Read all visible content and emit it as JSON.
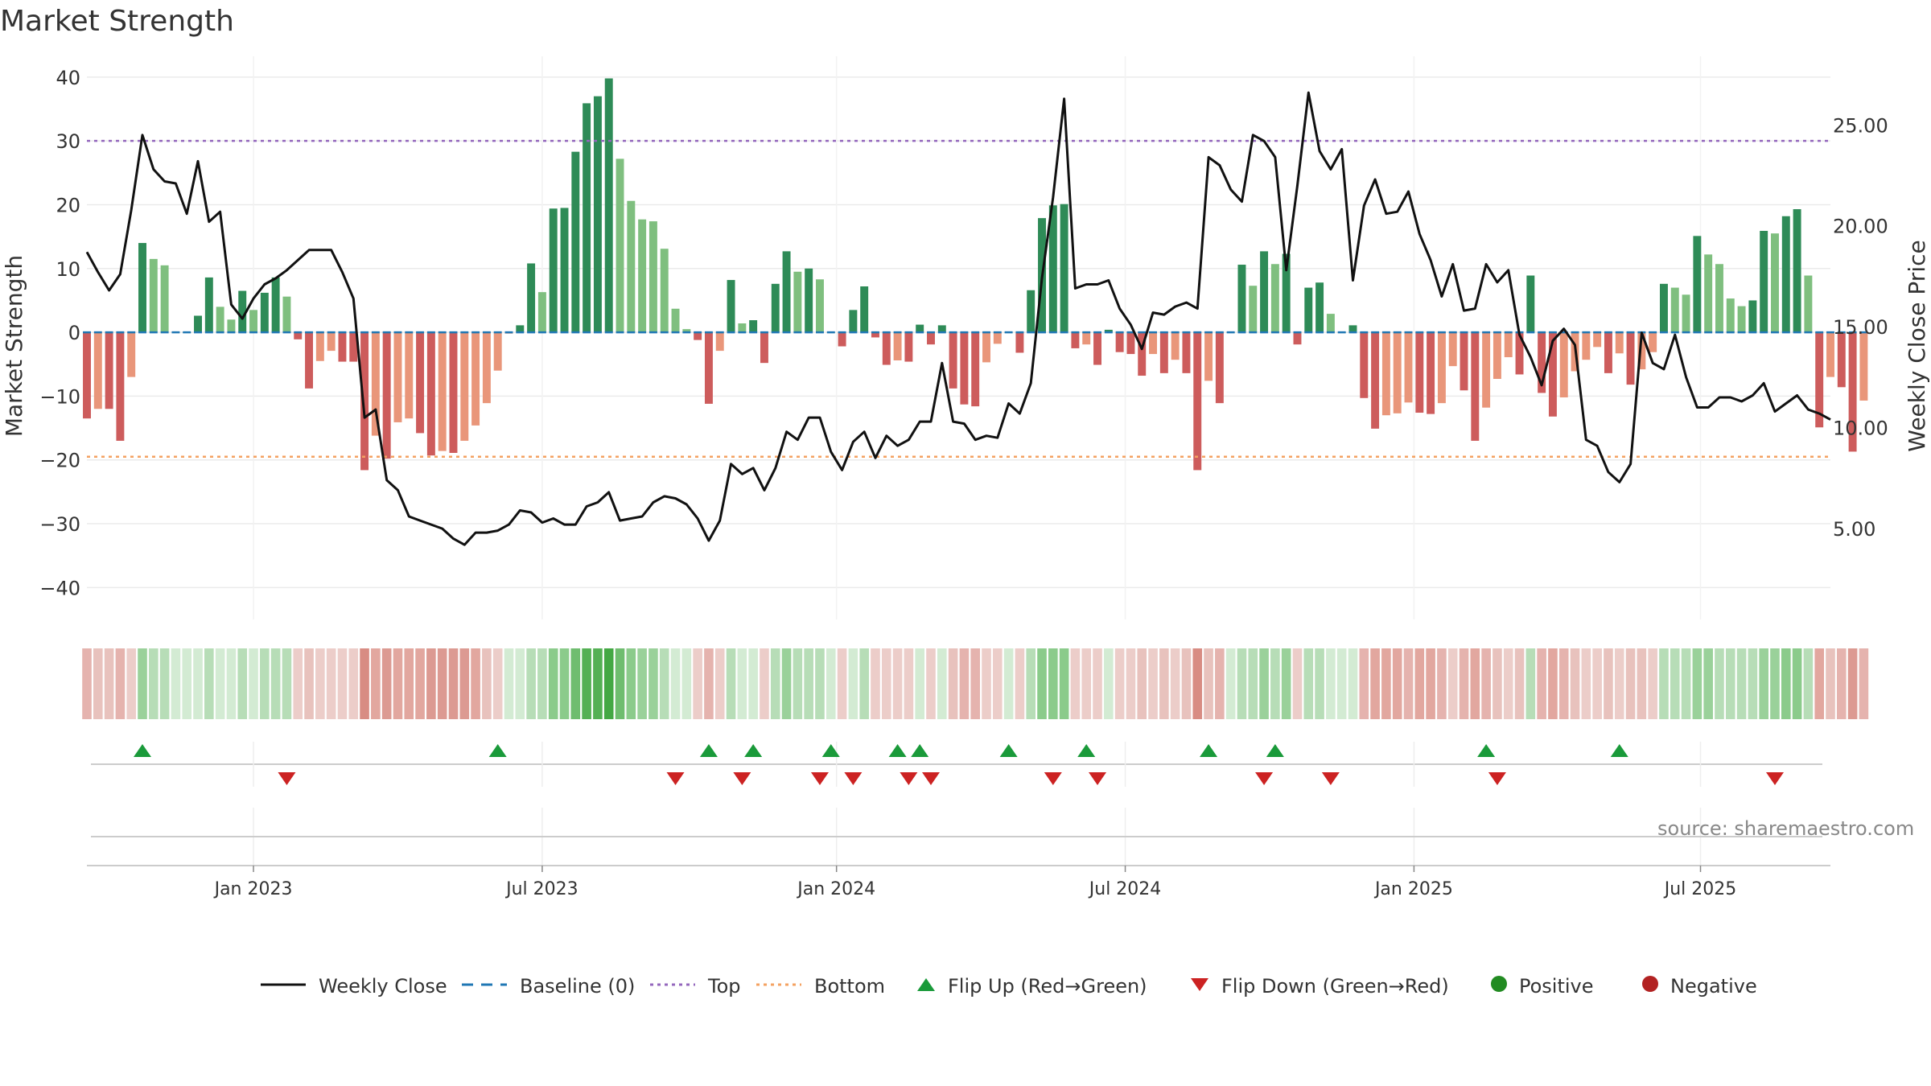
{
  "chart_data": {
    "type": "bar",
    "title": "Market Strength",
    "ylabel": "Market Strength",
    "y2label": "Weekly Close Price",
    "ylim": [
      -45,
      42
    ],
    "y2lim": [
      0.5,
      28.0
    ],
    "yticks": [
      40,
      30,
      20,
      10,
      0,
      -10,
      -20,
      -30,
      -40
    ],
    "yticklabels": [
      "40",
      "30",
      "20",
      "10",
      "0",
      "−10",
      "−20",
      "−30",
      "−40"
    ],
    "y2ticks": [
      25.0,
      20.0,
      15.0,
      10.0,
      5.0
    ],
    "y2ticklabels": [
      "25.00",
      "20.00",
      "15.00",
      "10.00",
      "5.00"
    ],
    "x_range_weeks": [
      0,
      157
    ],
    "xticks": [
      {
        "week": 15,
        "label": "Jan 2023"
      },
      {
        "week": 41,
        "label": "Jul 2023"
      },
      {
        "week": 67.5,
        "label": "Jan 2024"
      },
      {
        "week": 93.5,
        "label": "Jul 2024"
      },
      {
        "week": 119.5,
        "label": "Jan 2025"
      },
      {
        "week": 145.3,
        "label": "Jul 2025"
      }
    ],
    "top_line": 30,
    "bottom_line": -19.5,
    "baseline": 0,
    "strength_values": [
      -13.5,
      -12,
      -12,
      -17,
      -7,
      14,
      11.5,
      10.5,
      0,
      0,
      2.6,
      8.6,
      4,
      2,
      6.5,
      3.5,
      6.2,
      8.6,
      5.6,
      -1.1,
      -8.8,
      -4.5,
      -2.9,
      -4.6,
      -4.6,
      -21.6,
      -16.2,
      -19.8,
      -14.1,
      -13.5,
      -15.8,
      -19.3,
      -18.6,
      -18.9,
      -17,
      -14.6,
      -11.1,
      -6,
      -0.2,
      1.1,
      10.8,
      6.3,
      19.4,
      19.5,
      28.3,
      35.9,
      37,
      39.8,
      27.2,
      20.6,
      17.7,
      17.4,
      13.1,
      3.7,
      0.5,
      -1.2,
      -11.2,
      -2.9,
      8.2,
      1.4,
      1.9,
      -4.8,
      7.6,
      12.7,
      9.5,
      10,
      8.3,
      0,
      -2.2,
      3.5,
      7.2,
      -0.8,
      -5.1,
      -4.4,
      -4.6,
      1.2,
      -1.9,
      1.1,
      -8.8,
      -11.3,
      -11.6,
      -4.7,
      -1.8,
      0,
      -3.2,
      6.6,
      17.9,
      19.9,
      20.1,
      -2.5,
      -1.9,
      -5.1,
      0.4,
      -3.1,
      -3.4,
      -6.8,
      -3.4,
      -6.4,
      -4.3,
      -6.4,
      -21.6,
      -7.6,
      -11.1,
      0,
      10.6,
      7.3,
      12.7,
      10.7,
      12.3,
      -1.9,
      7,
      7.8,
      2.9,
      0,
      1.1,
      -10.3,
      -15.1,
      -13,
      -12.7,
      -11,
      -12.6,
      -12.8,
      -11.1,
      -5.3,
      -9.1,
      -17,
      -11.8,
      -7.3,
      -3.9,
      -6.6,
      8.9,
      -9.5,
      -13.2,
      -10.2,
      -6.1,
      -4.3,
      -2.3,
      -6.4,
      -3.3,
      -8.2,
      -5.8,
      -3.1,
      7.6,
      7,
      5.9,
      15.1,
      12.2,
      10.7,
      5.3,
      4.1,
      5,
      15.9,
      15.5,
      18.2,
      19.3,
      8.9,
      -14.9,
      -7,
      -8.6,
      -18.7,
      -10.7
    ],
    "close_prices": [
      18.7,
      17.7,
      16.8,
      17.6,
      20.8,
      24.5,
      22.8,
      22.2,
      22.1,
      20.6,
      23.2,
      20.2,
      20.7,
      16.1,
      15.4,
      16.4,
      17.1,
      17.4,
      17.8,
      18.3,
      18.8,
      18.8,
      18.8,
      17.7,
      16.4,
      10.5,
      10.9,
      7.4,
      6.9,
      5.6,
      5.4,
      5.2,
      5.0,
      4.5,
      4.2,
      4.8,
      4.8,
      4.9,
      5.2,
      5.9,
      5.8,
      5.3,
      5.5,
      5.2,
      5.2,
      6.1,
      6.3,
      6.8,
      5.4,
      5.5,
      5.6,
      6.3,
      6.6,
      6.5,
      6.2,
      5.5,
      4.4,
      5.4,
      8.2,
      7.7,
      8.0,
      6.9,
      8.0,
      9.8,
      9.4,
      10.5,
      10.5,
      8.8,
      7.9,
      9.3,
      9.8,
      8.5,
      9.6,
      9.1,
      9.4,
      10.3,
      10.3,
      13.2,
      10.3,
      10.2,
      9.4,
      9.6,
      9.5,
      11.2,
      10.7,
      12.2,
      17.4,
      21.4,
      26.3,
      16.9,
      17.1,
      17.1,
      17.3,
      15.9,
      15.1,
      13.9,
      15.7,
      15.6,
      16.0,
      16.2,
      15.9,
      23.4,
      23.0,
      21.8,
      21.2,
      24.5,
      24.2,
      23.4,
      17.8,
      22.0,
      26.6,
      23.7,
      22.8,
      23.8,
      17.3,
      21.0,
      22.3,
      20.6,
      20.7,
      21.7,
      19.6,
      18.3,
      16.5,
      18.1,
      15.8,
      15.9,
      18.1,
      17.2,
      17.8,
      14.6,
      13.5,
      12.1,
      14.3,
      14.9,
      14.1,
      9.4,
      9.1,
      7.8,
      7.3,
      8.2,
      14.7,
      13.2,
      12.9,
      14.6,
      12.5,
      11.0,
      11.0,
      11.5,
      11.5,
      11.3,
      11.6,
      12.2,
      10.8,
      11.2,
      11.6,
      10.9,
      10.7,
      10.4
    ],
    "strip_colors": [
      "#e5b3ae",
      "#e8c2bd",
      "#e8c2bd",
      "#e5b3ae",
      "#eccdc9",
      "#9ad19a",
      "#b7ddb7",
      "#b7ddb7",
      "#d3ebd3",
      "#d3ebd3",
      "#d3ebd3",
      "#b7ddb7",
      "#d3ebd3",
      "#d3ebd3",
      "#b7ddb7",
      "#d3ebd3",
      "#b7ddb7",
      "#b7ddb7",
      "#b7ddb7",
      "#eccdc9",
      "#e8c2bd",
      "#eccdc9",
      "#eccdc9",
      "#eccdc9",
      "#eccdc9",
      "#d88c83",
      "#e2a79f",
      "#dc9a92",
      "#e2a79f",
      "#e2a79f",
      "#e2a79f",
      "#dc9a92",
      "#dc9a92",
      "#dc9a92",
      "#dc9a92",
      "#e2a79f",
      "#e8c2bd",
      "#eccdc9",
      "#d3ebd3",
      "#d3ebd3",
      "#b7ddb7",
      "#b7ddb7",
      "#8bcb8b",
      "#8bcb8b",
      "#6fbd6f",
      "#54b054",
      "#54b054",
      "#44a844",
      "#6fbd6f",
      "#8bcb8b",
      "#9ad19a",
      "#9ad19a",
      "#b7ddb7",
      "#d3ebd3",
      "#d3ebd3",
      "#eccdc9",
      "#e5b3ae",
      "#eccdc9",
      "#b7ddb7",
      "#d3ebd3",
      "#d3ebd3",
      "#eccdc9",
      "#b7ddb7",
      "#9ad19a",
      "#b7ddb7",
      "#b7ddb7",
      "#b7ddb7",
      "#d3ebd3",
      "#eccdc9",
      "#d3ebd3",
      "#b7ddb7",
      "#eccdc9",
      "#eccdc9",
      "#eccdc9",
      "#eccdc9",
      "#d3ebd3",
      "#eccdc9",
      "#d3ebd3",
      "#e8c2bd",
      "#e5b3ae",
      "#e5b3ae",
      "#eccdc9",
      "#eccdc9",
      "#d3ebd3",
      "#eccdc9",
      "#b7ddb7",
      "#8bcb8b",
      "#8bcb8b",
      "#8bcb8b",
      "#eccdc9",
      "#eccdc9",
      "#eccdc9",
      "#d3ebd3",
      "#eccdc9",
      "#eccdc9",
      "#e8c2bd",
      "#eccdc9",
      "#e8c2bd",
      "#eccdc9",
      "#e8c2bd",
      "#d88c83",
      "#e8c2bd",
      "#e5b3ae",
      "#d3ebd3",
      "#b7ddb7",
      "#b7ddb7",
      "#9ad19a",
      "#b7ddb7",
      "#9ad19a",
      "#eccdc9",
      "#b7ddb7",
      "#b7ddb7",
      "#d3ebd3",
      "#d3ebd3",
      "#d3ebd3",
      "#e5b3ae",
      "#e2a79f",
      "#e2a79f",
      "#e2a79f",
      "#e5b3ae",
      "#e2a79f",
      "#e2a79f",
      "#e5b3ae",
      "#eccdc9",
      "#e5b3ae",
      "#e2a79f",
      "#e5b3ae",
      "#e8c2bd",
      "#eccdc9",
      "#e8c2bd",
      "#b7ddb7",
      "#e5b3ae",
      "#e2a79f",
      "#e5b3ae",
      "#e8c2bd",
      "#eccdc9",
      "#eccdc9",
      "#e8c2bd",
      "#eccdc9",
      "#e8c2bd",
      "#e8c2bd",
      "#eccdc9",
      "#b7ddb7",
      "#b7ddb7",
      "#b7ddb7",
      "#9ad19a",
      "#9ad19a",
      "#b7ddb7",
      "#b7ddb7",
      "#b7ddb7",
      "#b7ddb7",
      "#9ad19a",
      "#9ad19a",
      "#8bcb8b",
      "#8bcb8b",
      "#b7ddb7",
      "#e2a79f",
      "#e8c2bd",
      "#e5b3ae",
      "#dc9a92",
      "#e5b3ae"
    ],
    "flip_up_weeks": [
      5,
      37,
      56,
      60,
      67,
      73,
      75,
      83,
      90,
      101,
      107,
      126,
      138
    ],
    "flip_down_weeks": [
      18,
      53,
      59,
      66,
      69,
      74,
      76,
      87,
      91,
      106,
      112,
      127,
      152
    ],
    "colors": {
      "green_dark": "#2e8b57",
      "green_light": "#7fbf7f",
      "red_dark": "#cd5c5c",
      "red_light": "#e9967a",
      "close_line": "#111111",
      "top_line": "#9467bd",
      "bottom_line": "#f4a261",
      "baseline": "#1f77b4",
      "flip_up": "#1a9a3a",
      "flip_down": "#cc2222",
      "positive": "#228b22",
      "negative": "#b22222"
    },
    "legend": [
      {
        "key": "close",
        "label": "Weekly Close"
      },
      {
        "key": "baseline",
        "label": "Baseline (0)"
      },
      {
        "key": "top",
        "label": "Top"
      },
      {
        "key": "bottom",
        "label": "Bottom"
      },
      {
        "key": "flip_up",
        "label": "Flip Up (Red→Green)"
      },
      {
        "key": "flip_down",
        "label": "Flip Down (Green→Red)"
      },
      {
        "key": "positive",
        "label": "Positive"
      },
      {
        "key": "negative",
        "label": "Negative"
      }
    ],
    "legend_position": "bottom-center",
    "source": "source: sharemaestro.com"
  }
}
